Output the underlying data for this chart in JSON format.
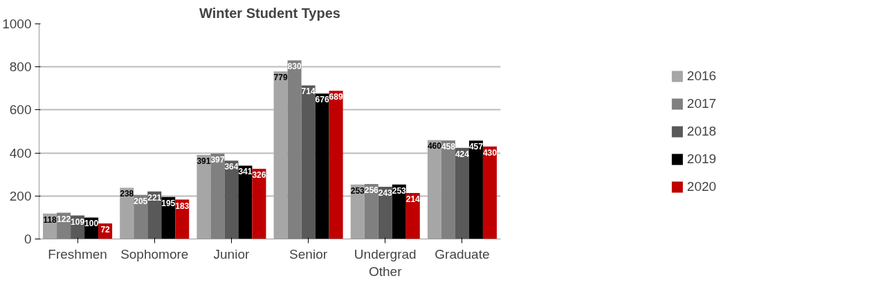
{
  "chart_data": {
    "type": "bar",
    "title": "Winter Student Types",
    "categories": [
      "Freshmen",
      "Sophomore",
      "Junior",
      "Senior",
      "Undergrad Other",
      "Graduate"
    ],
    "series": [
      {
        "name": "2016",
        "color": "#a6a6a6",
        "values": [
          118,
          238,
          391,
          779,
          253,
          460
        ]
      },
      {
        "name": "2017",
        "color": "#808080",
        "values": [
          122,
          205,
          397,
          830,
          256,
          458
        ]
      },
      {
        "name": "2018",
        "color": "#595959",
        "values": [
          109,
          221,
          364,
          714,
          243,
          424
        ]
      },
      {
        "name": "2019",
        "color": "#000000",
        "values": [
          100,
          195,
          341,
          676,
          253,
          457
        ]
      },
      {
        "name": "2020",
        "color": "#c00000",
        "values": [
          72,
          183,
          326,
          689,
          214,
          430
        ]
      }
    ],
    "ylim": [
      0,
      1000
    ],
    "yticks": [
      0,
      200,
      400,
      600,
      800,
      1000
    ],
    "grid": "y",
    "legend": "right",
    "data_labels": true
  }
}
